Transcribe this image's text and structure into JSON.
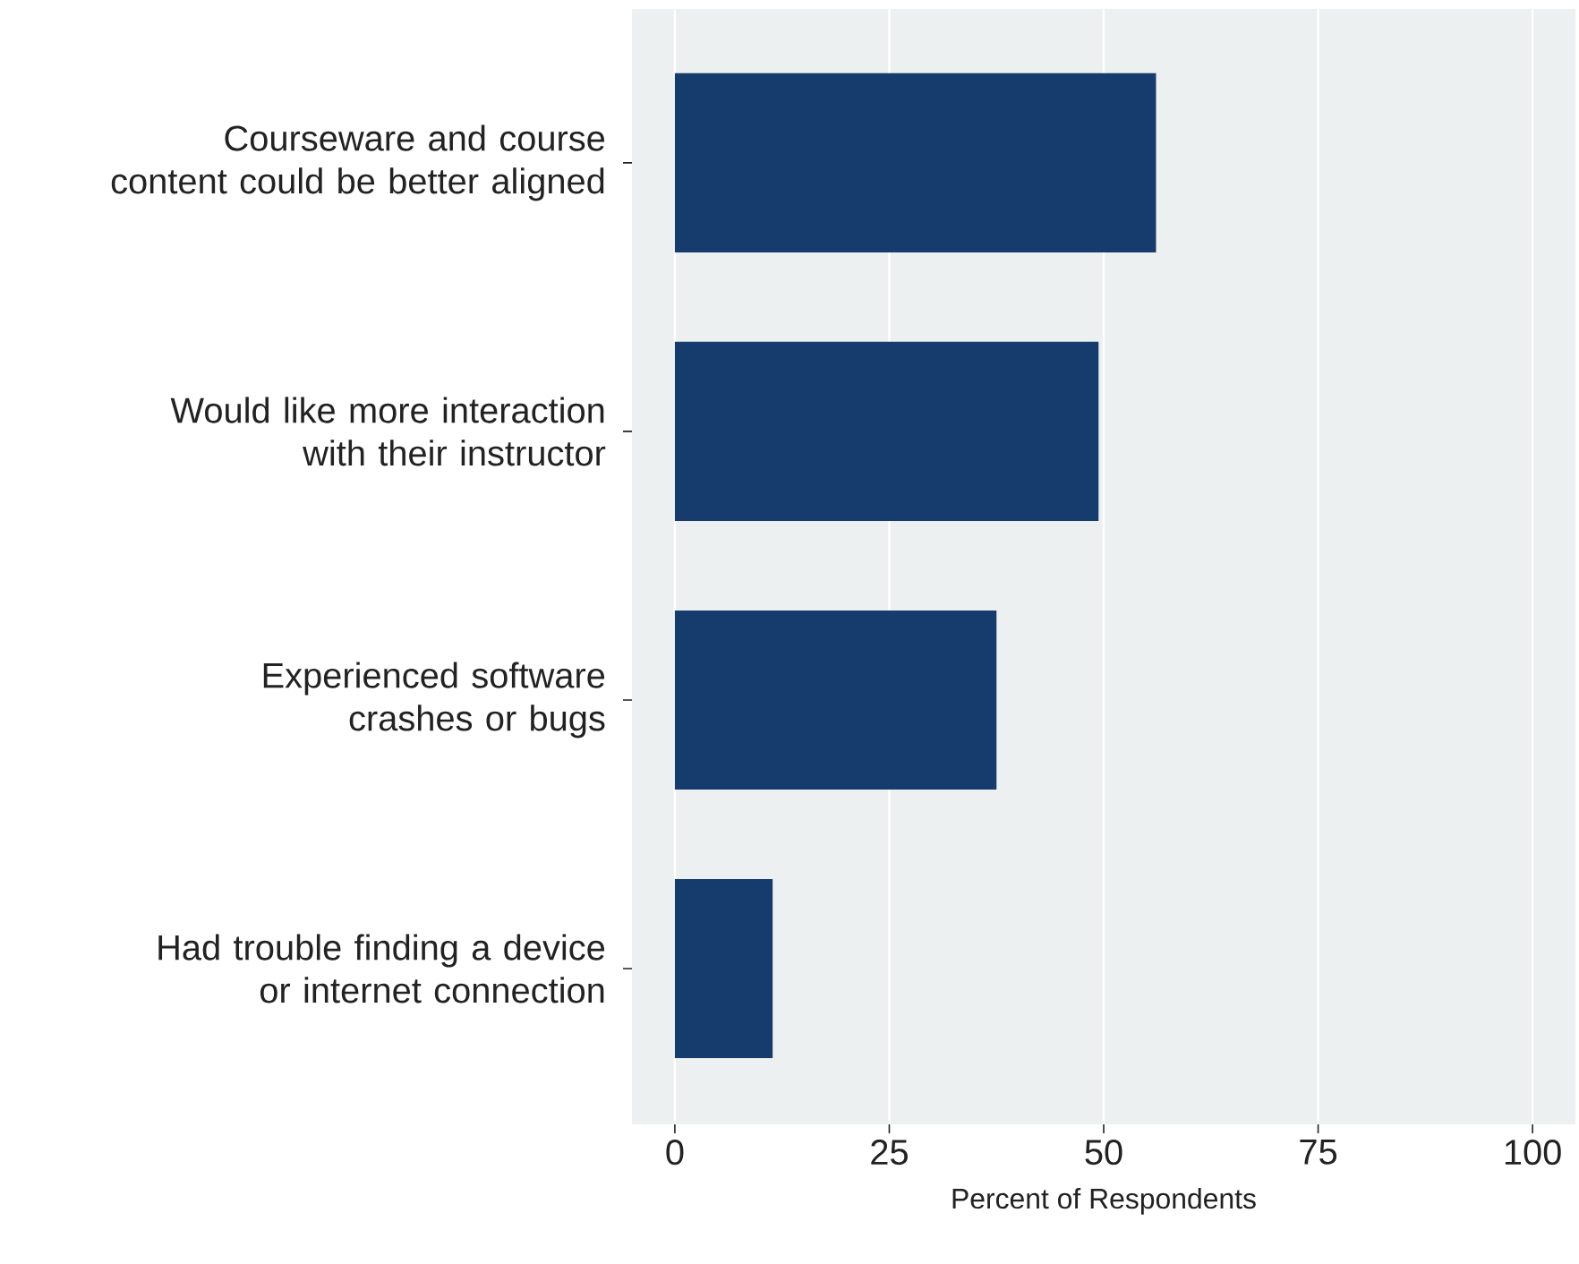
{
  "chart_data": {
    "type": "bar",
    "orientation": "horizontal",
    "categories": [
      "Courseware and course content could be better aligned",
      "Would like more interaction with their instructor",
      "Experienced software crashes or bugs",
      "Had trouble finding a device or internet connection"
    ],
    "values": [
      56.1,
      49.4,
      37.5,
      11.4
    ],
    "color": "#163b6d",
    "xlabel": "Percent of Respondents",
    "xlim": [
      -5,
      105
    ],
    "xticks": [
      0,
      25,
      50,
      75,
      100
    ],
    "grid": "x"
  }
}
